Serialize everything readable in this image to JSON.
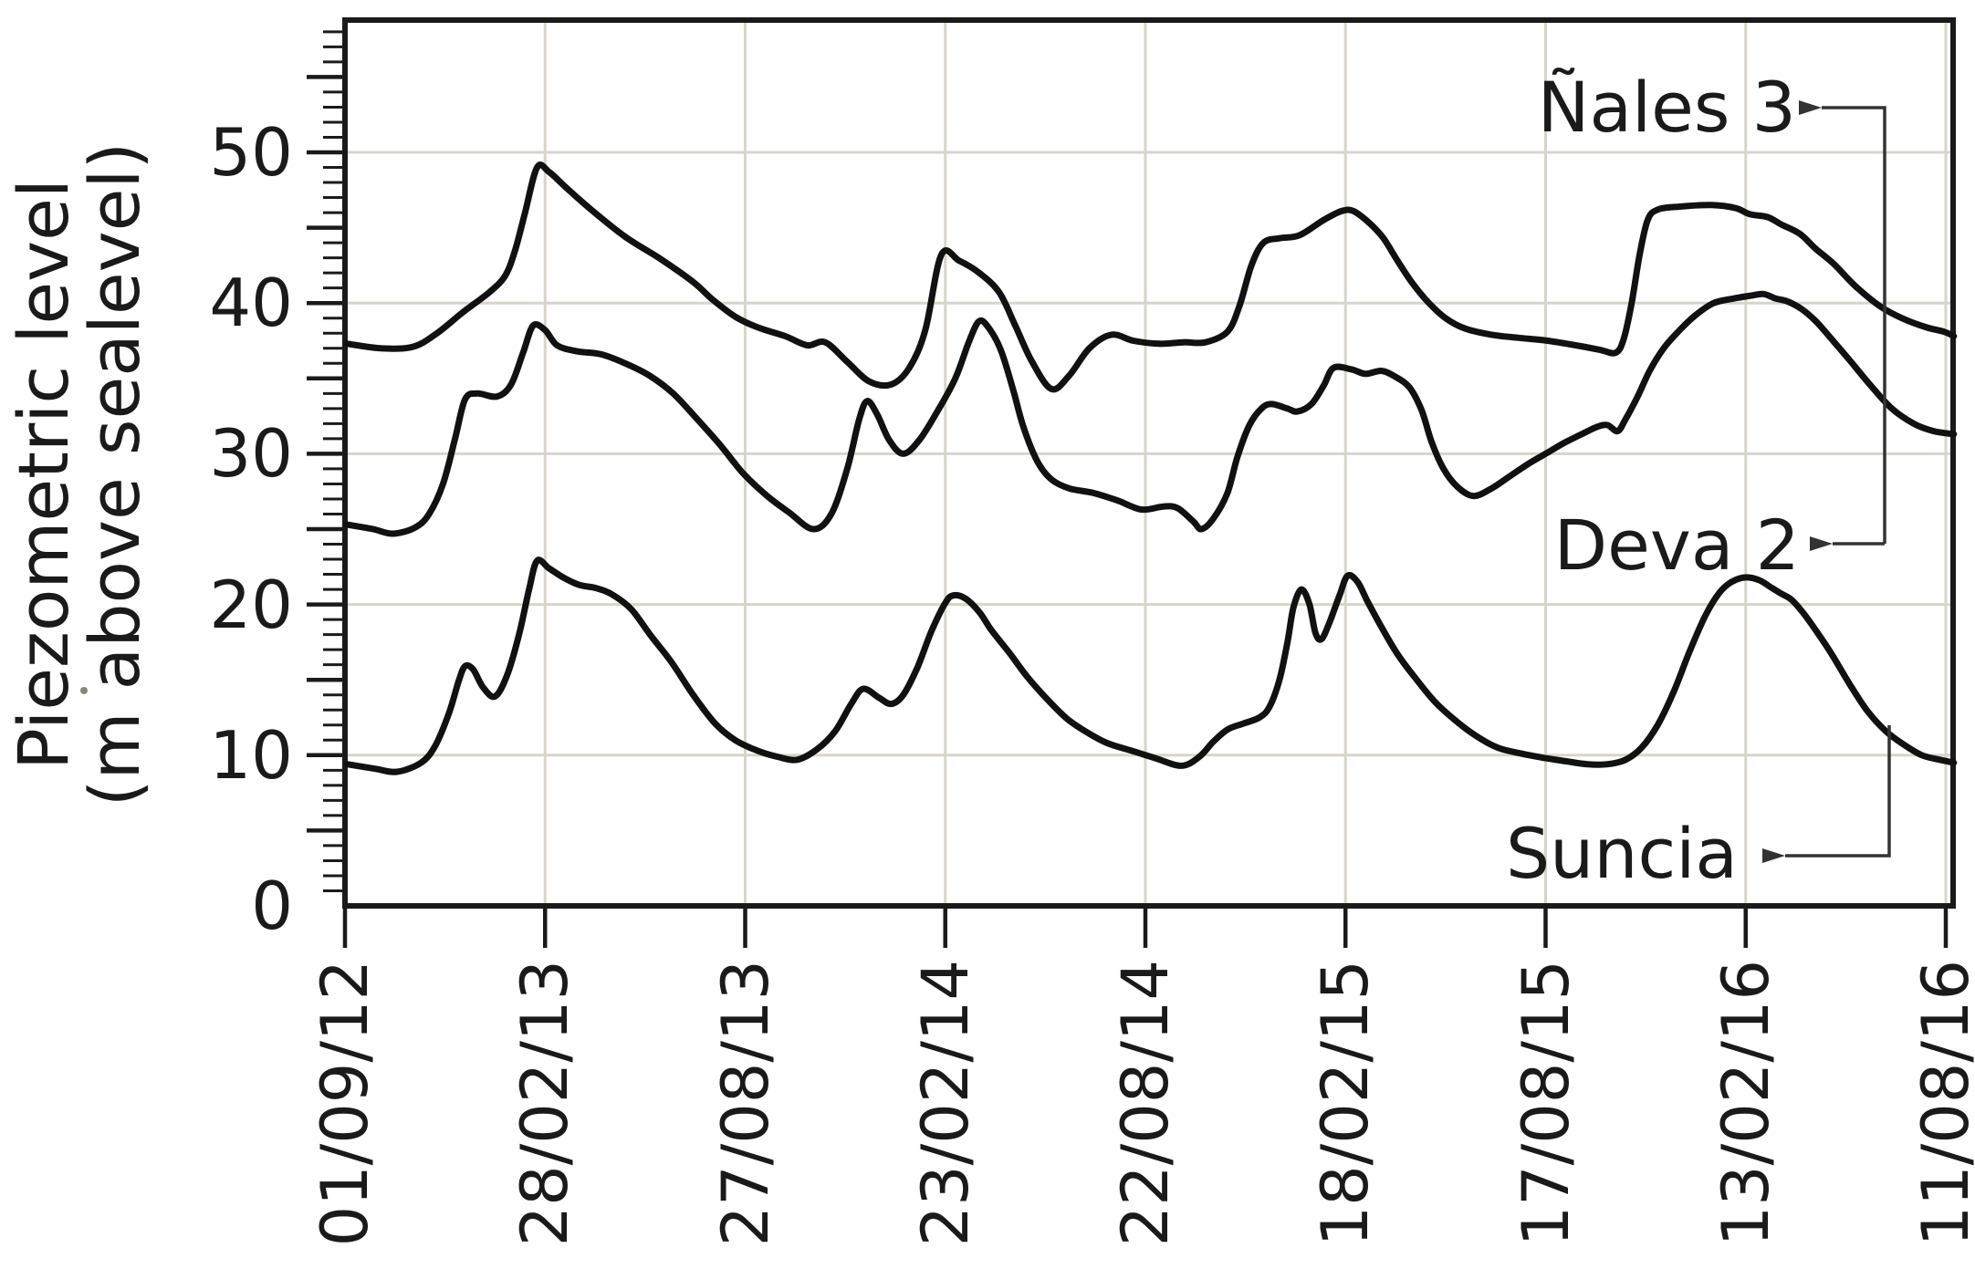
{
  "colors": {
    "line": "#111111",
    "frame": "#1a1a1a",
    "grid": "#d8d5c8",
    "arrow": "#333333",
    "text": "#1a1a1a",
    "background": "#ffffff"
  },
  "y_axis": {
    "title_line1": "Piezometric level",
    "title_line2": "(m above sealevel)",
    "tick_labels": [
      "0",
      "10",
      "20",
      "30",
      "40",
      "50"
    ],
    "tick_values": [
      0,
      10,
      20,
      30,
      40,
      50
    ],
    "minor_tick_step": 1,
    "major_tick_step": 5,
    "range_shown": [
      0,
      58.8
    ]
  },
  "x_axis": {
    "tick_labels": [
      "01/09/12",
      "28/02/13",
      "27/08/13",
      "23/02/14",
      "22/08/14",
      "18/02/15",
      "17/08/15",
      "13/02/16",
      "11/08/16"
    ]
  },
  "series_labels": [
    {
      "text": "Ñales 3"
    },
    {
      "text": "Deva 2"
    },
    {
      "text": "Suncia"
    }
  ],
  "chart_data": {
    "type": "line",
    "title": "",
    "xlabel": "",
    "ylabel": "Piezometric level (m above sealevel)",
    "x_unit": "half-year tick index (0 = 01/09/12, 1 = 28/02/13, ... 8 = 11/08/16)",
    "x_tick_dates": [
      "01/09/12",
      "28/02/13",
      "27/08/13",
      "23/02/14",
      "22/08/14",
      "18/02/15",
      "17/08/15",
      "13/02/16",
      "11/08/16"
    ],
    "ylim": [
      0,
      58.8
    ],
    "grid": true,
    "legend": "inline arrow callouts",
    "series": [
      {
        "name": "Ñales 3",
        "points": [
          [
            0.01,
            37.3
          ],
          [
            0.18,
            37.0
          ],
          [
            0.34,
            37.1
          ],
          [
            0.46,
            38.0
          ],
          [
            0.59,
            39.4
          ],
          [
            0.72,
            40.7
          ],
          [
            0.8,
            41.8
          ],
          [
            0.85,
            43.5
          ],
          [
            0.9,
            46.0
          ],
          [
            0.96,
            49.0
          ],
          [
            1.02,
            48.7
          ],
          [
            1.11,
            47.6
          ],
          [
            1.23,
            46.2
          ],
          [
            1.4,
            44.4
          ],
          [
            1.58,
            42.9
          ],
          [
            1.74,
            41.4
          ],
          [
            1.84,
            40.2
          ],
          [
            1.95,
            39.1
          ],
          [
            2.06,
            38.4
          ],
          [
            2.2,
            37.8
          ],
          [
            2.31,
            37.2
          ],
          [
            2.4,
            37.4
          ],
          [
            2.51,
            36.1
          ],
          [
            2.62,
            34.8
          ],
          [
            2.73,
            34.6
          ],
          [
            2.82,
            35.7
          ],
          [
            2.9,
            38.2
          ],
          [
            2.98,
            43.2
          ],
          [
            3.07,
            42.8
          ],
          [
            3.17,
            42.0
          ],
          [
            3.27,
            40.7
          ],
          [
            3.35,
            38.5
          ],
          [
            3.43,
            36.2
          ],
          [
            3.53,
            34.3
          ],
          [
            3.62,
            35.2
          ],
          [
            3.72,
            37.0
          ],
          [
            3.83,
            37.9
          ],
          [
            3.94,
            37.5
          ],
          [
            4.07,
            37.3
          ],
          [
            4.19,
            37.4
          ],
          [
            4.3,
            37.4
          ],
          [
            4.41,
            38.1
          ],
          [
            4.47,
            39.8
          ],
          [
            4.53,
            42.5
          ],
          [
            4.59,
            44.0
          ],
          [
            4.67,
            44.3
          ],
          [
            4.77,
            44.5
          ],
          [
            4.89,
            45.5
          ],
          [
            4.98,
            46.1
          ],
          [
            5.04,
            46.1
          ],
          [
            5.12,
            45.3
          ],
          [
            5.19,
            44.3
          ],
          [
            5.26,
            42.8
          ],
          [
            5.33,
            41.4
          ],
          [
            5.41,
            40.1
          ],
          [
            5.5,
            39.0
          ],
          [
            5.6,
            38.3
          ],
          [
            5.73,
            37.9
          ],
          [
            5.86,
            37.7
          ],
          [
            6.01,
            37.5
          ],
          [
            6.15,
            37.2
          ],
          [
            6.27,
            36.9
          ],
          [
            6.35,
            36.7
          ],
          [
            6.39,
            37.6
          ],
          [
            6.43,
            40.0
          ],
          [
            6.47,
            43.2
          ],
          [
            6.51,
            45.5
          ],
          [
            6.56,
            46.2
          ],
          [
            6.67,
            46.4
          ],
          [
            6.83,
            46.5
          ],
          [
            6.95,
            46.3
          ],
          [
            7.02,
            45.9
          ],
          [
            7.11,
            45.7
          ],
          [
            7.18,
            45.2
          ],
          [
            7.27,
            44.6
          ],
          [
            7.35,
            43.6
          ],
          [
            7.44,
            42.6
          ],
          [
            7.55,
            41.1
          ],
          [
            7.67,
            39.8
          ],
          [
            7.78,
            39.0
          ],
          [
            7.9,
            38.4
          ],
          [
            7.99,
            38.1
          ],
          [
            8.04,
            37.8
          ]
        ]
      },
      {
        "name": "Deva 2",
        "points": [
          [
            0.01,
            25.3
          ],
          [
            0.14,
            25.0
          ],
          [
            0.24,
            24.7
          ],
          [
            0.35,
            25.1
          ],
          [
            0.42,
            26.0
          ],
          [
            0.49,
            28.0
          ],
          [
            0.55,
            31.0
          ],
          [
            0.6,
            33.6
          ],
          [
            0.66,
            34.0
          ],
          [
            0.76,
            33.8
          ],
          [
            0.83,
            34.6
          ],
          [
            0.89,
            36.7
          ],
          [
            0.94,
            38.5
          ],
          [
            1.0,
            38.2
          ],
          [
            1.06,
            37.2
          ],
          [
            1.16,
            36.8
          ],
          [
            1.28,
            36.6
          ],
          [
            1.4,
            36.0
          ],
          [
            1.52,
            35.2
          ],
          [
            1.64,
            34.0
          ],
          [
            1.76,
            32.3
          ],
          [
            1.88,
            30.5
          ],
          [
            1.99,
            28.7
          ],
          [
            2.11,
            27.2
          ],
          [
            2.22,
            26.1
          ],
          [
            2.34,
            25.0
          ],
          [
            2.43,
            26.0
          ],
          [
            2.51,
            29.0
          ],
          [
            2.57,
            32.3
          ],
          [
            2.61,
            33.5
          ],
          [
            2.66,
            32.6
          ],
          [
            2.72,
            30.9
          ],
          [
            2.79,
            30.0
          ],
          [
            2.87,
            30.9
          ],
          [
            2.96,
            32.8
          ],
          [
            3.05,
            35.0
          ],
          [
            3.12,
            37.5
          ],
          [
            3.17,
            38.8
          ],
          [
            3.22,
            38.3
          ],
          [
            3.28,
            36.8
          ],
          [
            3.34,
            34.2
          ],
          [
            3.39,
            31.8
          ],
          [
            3.46,
            29.5
          ],
          [
            3.53,
            28.3
          ],
          [
            3.62,
            27.7
          ],
          [
            3.74,
            27.4
          ],
          [
            3.86,
            26.9
          ],
          [
            3.98,
            26.3
          ],
          [
            4.09,
            26.5
          ],
          [
            4.16,
            26.4
          ],
          [
            4.24,
            25.5
          ],
          [
            4.28,
            25.0
          ],
          [
            4.34,
            25.7
          ],
          [
            4.41,
            27.4
          ],
          [
            4.46,
            29.8
          ],
          [
            4.52,
            31.9
          ],
          [
            4.58,
            33.0
          ],
          [
            4.63,
            33.3
          ],
          [
            4.71,
            33.0
          ],
          [
            4.76,
            32.8
          ],
          [
            4.83,
            33.3
          ],
          [
            4.89,
            34.5
          ],
          [
            4.94,
            35.7
          ],
          [
            5.03,
            35.6
          ],
          [
            5.1,
            35.3
          ],
          [
            5.18,
            35.5
          ],
          [
            5.25,
            35.1
          ],
          [
            5.32,
            34.4
          ],
          [
            5.38,
            32.9
          ],
          [
            5.43,
            30.8
          ],
          [
            5.49,
            29.0
          ],
          [
            5.56,
            27.8
          ],
          [
            5.64,
            27.2
          ],
          [
            5.73,
            27.7
          ],
          [
            5.82,
            28.5
          ],
          [
            5.91,
            29.3
          ],
          [
            6.0,
            30.0
          ],
          [
            6.09,
            30.7
          ],
          [
            6.18,
            31.3
          ],
          [
            6.26,
            31.8
          ],
          [
            6.31,
            31.9
          ],
          [
            6.36,
            31.5
          ],
          [
            6.4,
            32.3
          ],
          [
            6.46,
            33.8
          ],
          [
            6.52,
            35.5
          ],
          [
            6.59,
            37.0
          ],
          [
            6.67,
            38.2
          ],
          [
            6.75,
            39.2
          ],
          [
            6.84,
            40.0
          ],
          [
            6.94,
            40.3
          ],
          [
            7.03,
            40.5
          ],
          [
            7.09,
            40.6
          ],
          [
            7.15,
            40.3
          ],
          [
            7.21,
            40.1
          ],
          [
            7.28,
            39.6
          ],
          [
            7.35,
            38.8
          ],
          [
            7.43,
            37.6
          ],
          [
            7.52,
            36.2
          ],
          [
            7.62,
            34.6
          ],
          [
            7.73,
            33.0
          ],
          [
            7.84,
            32.0
          ],
          [
            7.94,
            31.5
          ],
          [
            8.04,
            31.3
          ]
        ]
      },
      {
        "name": "Suncia",
        "points": [
          [
            0.01,
            9.4
          ],
          [
            0.15,
            9.1
          ],
          [
            0.26,
            8.9
          ],
          [
            0.38,
            9.5
          ],
          [
            0.45,
            10.6
          ],
          [
            0.52,
            12.8
          ],
          [
            0.57,
            15.0
          ],
          [
            0.6,
            15.9
          ],
          [
            0.64,
            15.7
          ],
          [
            0.69,
            14.5
          ],
          [
            0.75,
            13.9
          ],
          [
            0.81,
            15.3
          ],
          [
            0.87,
            18.0
          ],
          [
            0.92,
            21.0
          ],
          [
            0.96,
            22.9
          ],
          [
            1.02,
            22.4
          ],
          [
            1.09,
            21.8
          ],
          [
            1.17,
            21.3
          ],
          [
            1.25,
            21.1
          ],
          [
            1.33,
            20.7
          ],
          [
            1.43,
            19.7
          ],
          [
            1.53,
            17.9
          ],
          [
            1.63,
            16.2
          ],
          [
            1.74,
            14.0
          ],
          [
            1.85,
            12.1
          ],
          [
            1.95,
            11.0
          ],
          [
            2.06,
            10.3
          ],
          [
            2.16,
            9.9
          ],
          [
            2.26,
            9.7
          ],
          [
            2.36,
            10.4
          ],
          [
            2.45,
            11.6
          ],
          [
            2.53,
            13.4
          ],
          [
            2.59,
            14.4
          ],
          [
            2.67,
            13.8
          ],
          [
            2.73,
            13.4
          ],
          [
            2.79,
            14.0
          ],
          [
            2.86,
            15.8
          ],
          [
            2.93,
            18.2
          ],
          [
            3.0,
            20.1
          ],
          [
            3.04,
            20.6
          ],
          [
            3.1,
            20.4
          ],
          [
            3.17,
            19.5
          ],
          [
            3.23,
            18.3
          ],
          [
            3.32,
            16.8
          ],
          [
            3.41,
            15.2
          ],
          [
            3.51,
            13.7
          ],
          [
            3.61,
            12.4
          ],
          [
            3.71,
            11.5
          ],
          [
            3.81,
            10.8
          ],
          [
            3.93,
            10.3
          ],
          [
            4.05,
            9.8
          ],
          [
            4.18,
            9.3
          ],
          [
            4.27,
            9.9
          ],
          [
            4.34,
            10.9
          ],
          [
            4.41,
            11.7
          ],
          [
            4.49,
            12.1
          ],
          [
            4.57,
            12.5
          ],
          [
            4.62,
            13.2
          ],
          [
            4.67,
            15.0
          ],
          [
            4.71,
            17.5
          ],
          [
            4.74,
            19.8
          ],
          [
            4.78,
            21.0
          ],
          [
            4.82,
            20.0
          ],
          [
            4.85,
            18.1
          ],
          [
            4.88,
            17.7
          ],
          [
            4.92,
            18.8
          ],
          [
            4.97,
            20.6
          ],
          [
            5.01,
            21.9
          ],
          [
            5.06,
            21.5
          ],
          [
            5.11,
            20.2
          ],
          [
            5.18,
            18.5
          ],
          [
            5.26,
            16.7
          ],
          [
            5.35,
            15.1
          ],
          [
            5.45,
            13.5
          ],
          [
            5.55,
            12.3
          ],
          [
            5.65,
            11.3
          ],
          [
            5.76,
            10.5
          ],
          [
            5.88,
            10.1
          ],
          [
            6.0,
            9.8
          ],
          [
            6.1,
            9.6
          ],
          [
            6.21,
            9.4
          ],
          [
            6.31,
            9.4
          ],
          [
            6.4,
            9.7
          ],
          [
            6.48,
            10.5
          ],
          [
            6.56,
            12.0
          ],
          [
            6.64,
            14.2
          ],
          [
            6.72,
            16.9
          ],
          [
            6.8,
            19.3
          ],
          [
            6.87,
            20.8
          ],
          [
            6.93,
            21.5
          ],
          [
            7.0,
            21.8
          ],
          [
            7.07,
            21.6
          ],
          [
            7.13,
            21.1
          ],
          [
            7.18,
            20.7
          ],
          [
            7.23,
            20.3
          ],
          [
            7.29,
            19.4
          ],
          [
            7.36,
            18.1
          ],
          [
            7.43,
            16.7
          ],
          [
            7.52,
            14.7
          ],
          [
            7.61,
            12.9
          ],
          [
            7.7,
            11.6
          ],
          [
            7.79,
            10.7
          ],
          [
            7.88,
            10.0
          ],
          [
            7.97,
            9.7
          ],
          [
            8.04,
            9.5
          ]
        ]
      }
    ]
  },
  "layout_note_values": {
    "callouts": [
      {
        "label": "Ñales 3",
        "arrow_y_value": 52.9
      },
      {
        "label": "Deva 2",
        "arrow_y_value": 24.0
      },
      {
        "label": "Suncia",
        "arrow_y_value": 3.4
      }
    ]
  }
}
